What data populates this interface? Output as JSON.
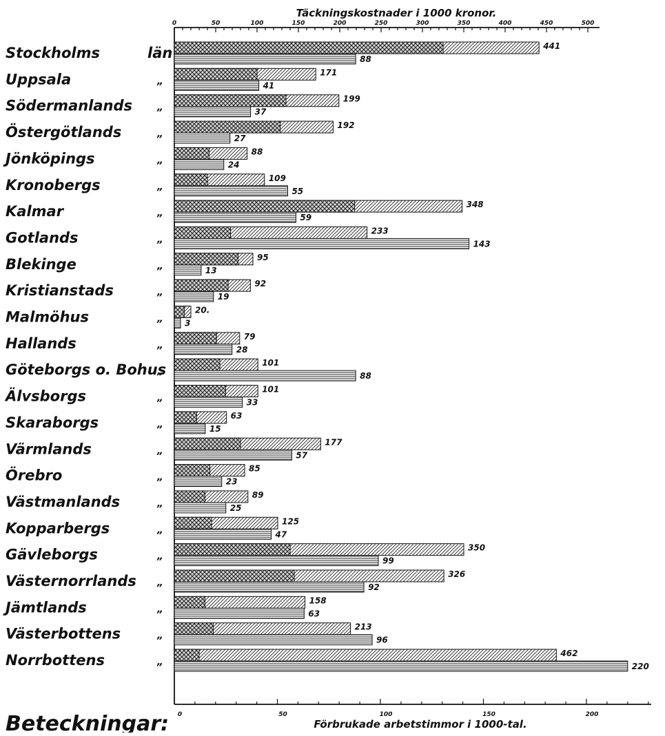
{
  "chart_data": {
    "type": "bar",
    "title_top": "Täckningskostnader i 1000 kronor.",
    "title_bottom": "Förbrukade arbetstimmor i 1000-tal.",
    "legend_heading": "Beteckningar:",
    "top_axis": {
      "min": 0,
      "max": 500,
      "ticks": [
        "0",
        "50",
        "100",
        "150",
        "200",
        "250",
        "300",
        "350",
        "400",
        "450",
        "500"
      ]
    },
    "bottom_axis": {
      "min": 0,
      "max": 230,
      "ticks": [
        "0",
        "50",
        "100",
        "150",
        "200"
      ]
    },
    "categories": [
      "Stockholms",
      "Uppsala",
      "Södermanlands",
      "Östergötlands",
      "Jönköpings",
      "Kronobergs",
      "Kalmar",
      "Gotlands",
      "Blekinge",
      "Kristianstads",
      "Malmöhus",
      "Hallands",
      "Göteborgs o. Bohus",
      "Älvsborgs",
      "Skaraborgs",
      "Värmlands",
      "Örebro",
      "Västmanlands",
      "Kopparbergs",
      "Gävleborgs",
      "Västernorrlands",
      "Jämtlands",
      "Västerbottens",
      "Norrbottens"
    ],
    "suffixes": [
      "län",
      "„",
      "„",
      "„",
      "„",
      "„",
      "„",
      "„",
      "„",
      "„",
      "„",
      "„",
      "„",
      "„",
      "„",
      "„",
      "„",
      "„",
      "„",
      "„",
      "„",
      "„",
      "„",
      "„"
    ],
    "series": [
      {
        "values": [
          441,
          171,
          199,
          192,
          88,
          109,
          348,
          233,
          95,
          92,
          20,
          79,
          101,
          101,
          63,
          177,
          85,
          89,
          125,
          350,
          326,
          158,
          213,
          462
        ],
        "cross_part": [
          325,
          100,
          135,
          128,
          42,
          40,
          218,
          68,
          77,
          65,
          12,
          51,
          55,
          62,
          27,
          80,
          43,
          37,
          45,
          140,
          145,
          37,
          47,
          30
        ],
        "labels": [
          "441",
          "171",
          "199",
          "192",
          "88",
          "109",
          "348",
          "233",
          "95",
          "92",
          "20.",
          "79",
          "101",
          "101",
          "63",
          "177",
          "85",
          "89",
          "125",
          "350",
          "326",
          "158",
          "213",
          "462"
        ]
      },
      {
        "values": [
          88,
          41,
          37,
          27,
          24,
          55,
          59,
          143,
          13,
          19,
          3,
          28,
          88,
          33,
          15,
          57,
          23,
          25,
          47,
          99,
          92,
          63,
          96,
          220
        ],
        "labels": [
          "88",
          "41",
          "37",
          "27",
          "24",
          "55",
          "59",
          "143",
          "13",
          "19",
          "3",
          "28",
          "88",
          "33",
          "15",
          "57",
          "23",
          "25",
          "47",
          "99",
          "92",
          "63",
          "96",
          "220"
        ]
      }
    ]
  }
}
